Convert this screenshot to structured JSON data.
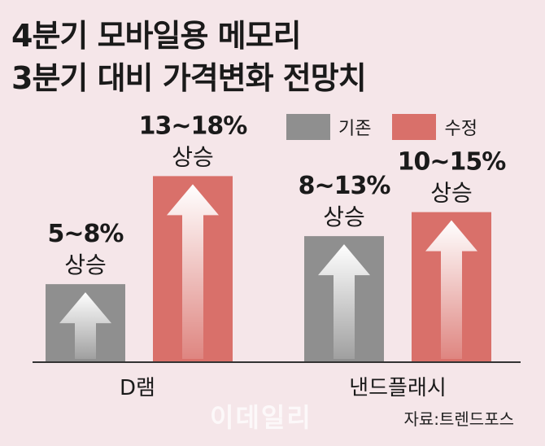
{
  "title": {
    "line1": "4분기 모바일용 메모리",
    "line2": "3분기 대비 가격변화 전망치"
  },
  "legend": [
    {
      "name": "기존",
      "color": "#8f8f8f"
    },
    {
      "name": "수정",
      "color": "#d9706a"
    }
  ],
  "source": "자료:트렌드포스",
  "watermark": "이데일리",
  "chart_data": {
    "type": "bar",
    "categories": [
      "D램",
      "낸드플래시"
    ],
    "series": [
      {
        "name": "기존",
        "values": [
          6.5,
          10.5
        ],
        "labels": [
          "5~8%",
          "8~13%"
        ],
        "sublabel": "상승"
      },
      {
        "name": "수정",
        "values": [
          15.5,
          12.5
        ],
        "labels": [
          "13~18%",
          "10~15%"
        ],
        "sublabel": "상승"
      }
    ],
    "ylim": [
      0,
      20
    ],
    "grid": false,
    "legend_position": "top-right"
  }
}
